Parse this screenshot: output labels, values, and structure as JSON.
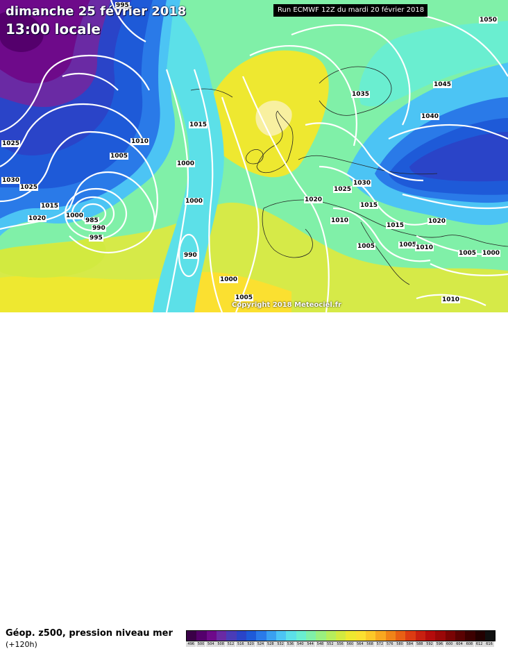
{
  "title": {
    "date": "dimanche 25 février 2018",
    "time": "13:00 locale"
  },
  "run_info": "Run ECMWF 12Z du mardi 20 février 2018",
  "copyright": "Copyright 2018 Meteociel.fr",
  "product": "Géop. z500, pression niveau mer",
  "lead_time": "(+120h)",
  "isobar_labels": [
    "995",
    "1025",
    "1030",
    "1025",
    "1015",
    "1020",
    "1000",
    "985",
    "990",
    "995",
    "1010",
    "1005",
    "1000",
    "1015",
    "1000",
    "990",
    "1000",
    "1005",
    "1035",
    "1045",
    "1040",
    "1050",
    "1025",
    "1030",
    "1020",
    "1015",
    "1010",
    "1015",
    "1020",
    "1005",
    "1005",
    "1010",
    "1005",
    "1000",
    "1010"
  ],
  "scale": {
    "labels": [
      "496",
      "500",
      "504",
      "508",
      "512",
      "516",
      "520",
      "524",
      "528",
      "532",
      "536",
      "540",
      "544",
      "548",
      "552",
      "556",
      "560",
      "564",
      "568",
      "572",
      "576",
      "580",
      "584",
      "588",
      "592",
      "596",
      "600",
      "604",
      "608",
      "612",
      "616"
    ],
    "colors": [
      "#3a0047",
      "#54006c",
      "#6e0a8a",
      "#6a2aa4",
      "#4a3cb8",
      "#2a44c8",
      "#1e5ad8",
      "#2a7ae8",
      "#3aa0f0",
      "#4cc4f4",
      "#5ce0e8",
      "#6aeed0",
      "#80f0a8",
      "#9af080",
      "#b6ee5c",
      "#d2ea40",
      "#eee830",
      "#fbe030",
      "#fcc828",
      "#f8a820",
      "#f08418",
      "#e86014",
      "#dc3c12",
      "#c82010",
      "#b40c0c",
      "#9a0808",
      "#7a0404",
      "#5a0202",
      "#3c0000",
      "#220000",
      "#101010"
    ]
  }
}
